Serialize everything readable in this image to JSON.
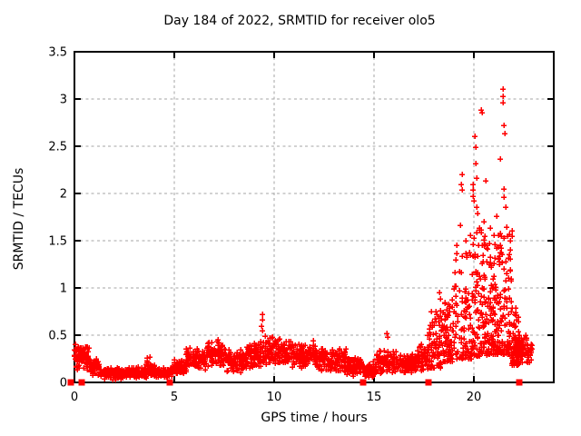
{
  "chart_data": {
    "type": "scatter",
    "title": "Day 184 of 2022, SRMTID for receiver olo5",
    "xlabel": "GPS time / hours",
    "ylabel": "SRMTID / TECUs",
    "xlim": [
      0,
      24
    ],
    "ylim": [
      0,
      3.5
    ],
    "xticks": [
      0,
      5,
      10,
      15,
      20
    ],
    "xtick_labels": [
      "0",
      "5",
      "10",
      "15",
      "20"
    ],
    "yticks": [
      0,
      0.5,
      1,
      1.5,
      2,
      2.5,
      3,
      3.5
    ],
    "ytick_labels": [
      "0",
      "0.5",
      "1",
      "1.5",
      "2",
      "2.5",
      "3",
      "3.5"
    ],
    "grid": "dashed on both axes at major ticks",
    "legend_position": "none",
    "marker": "plus-cross",
    "marker_color": "#ff0000",
    "grid_color": "#a6a6a6",
    "border_color": "#000000",
    "background_color": "#ffffff",
    "segment_format": [
      "x_start",
      "x_end",
      "count",
      "y_min",
      "y_max",
      "profile"
    ],
    "band_segments": [
      [
        0.0,
        0.35,
        45,
        0.08,
        0.46,
        "mid"
      ],
      [
        0.35,
        0.75,
        55,
        0.12,
        0.42,
        "mid"
      ],
      [
        0.75,
        1.25,
        60,
        0.06,
        0.28,
        "mid"
      ],
      [
        1.25,
        2.5,
        150,
        0.03,
        0.16,
        "mid"
      ],
      [
        2.5,
        3.6,
        130,
        0.04,
        0.17,
        "mid"
      ],
      [
        3.6,
        4.0,
        50,
        0.05,
        0.27,
        "mid"
      ],
      [
        4.0,
        4.9,
        95,
        0.04,
        0.16,
        "mid"
      ],
      [
        4.9,
        5.6,
        85,
        0.07,
        0.26,
        "mid"
      ],
      [
        5.6,
        6.6,
        115,
        0.12,
        0.38,
        "mid"
      ],
      [
        6.6,
        7.6,
        115,
        0.14,
        0.45,
        "mid"
      ],
      [
        7.6,
        8.6,
        105,
        0.1,
        0.36,
        "mid"
      ],
      [
        8.6,
        9.5,
        95,
        0.13,
        0.45,
        "mid"
      ],
      [
        9.5,
        10.6,
        115,
        0.16,
        0.5,
        "mid"
      ],
      [
        10.6,
        12.1,
        150,
        0.13,
        0.46,
        "mid"
      ],
      [
        12.1,
        13.6,
        140,
        0.09,
        0.38,
        "mid"
      ],
      [
        13.6,
        14.4,
        85,
        0.06,
        0.28,
        "mid"
      ],
      [
        14.4,
        15.1,
        70,
        0.05,
        0.22,
        "mid"
      ],
      [
        15.1,
        16.1,
        95,
        0.08,
        0.36,
        "mid"
      ],
      [
        16.1,
        17.1,
        95,
        0.08,
        0.31,
        "mid"
      ],
      [
        17.1,
        17.7,
        65,
        0.1,
        0.42,
        "mid"
      ],
      [
        17.7,
        18.35,
        75,
        0.15,
        0.78,
        "low"
      ],
      [
        18.35,
        19.0,
        85,
        0.22,
        0.9,
        "low"
      ],
      [
        19.0,
        19.9,
        95,
        0.25,
        1.45,
        "low"
      ],
      [
        19.9,
        20.65,
        115,
        0.28,
        1.65,
        "low"
      ],
      [
        20.65,
        21.2,
        100,
        0.3,
        1.5,
        "low"
      ],
      [
        21.2,
        21.9,
        115,
        0.3,
        1.65,
        "low"
      ],
      [
        21.9,
        22.25,
        55,
        0.18,
        0.8,
        "low"
      ],
      [
        22.0,
        22.7,
        90,
        0.15,
        0.55,
        "mid"
      ],
      [
        22.65,
        22.95,
        25,
        0.2,
        0.45,
        "mid"
      ]
    ],
    "outlier_points": [
      [
        9.4,
        0.72
      ],
      [
        9.4,
        0.66
      ],
      [
        9.38,
        0.6
      ],
      [
        9.42,
        0.55
      ],
      [
        15.65,
        0.52
      ],
      [
        15.7,
        0.48
      ],
      [
        18.25,
        0.95
      ],
      [
        18.3,
        0.88
      ],
      [
        19.15,
        1.45
      ],
      [
        19.3,
        1.66
      ],
      [
        19.4,
        2.2
      ],
      [
        19.37,
        2.1
      ],
      [
        19.42,
        2.04
      ],
      [
        19.6,
        1.5
      ],
      [
        19.8,
        1.56
      ],
      [
        19.95,
        2.1
      ],
      [
        19.97,
        2.04
      ],
      [
        19.95,
        1.97
      ],
      [
        19.98,
        1.92
      ],
      [
        20.05,
        2.61
      ],
      [
        20.07,
        2.49
      ],
      [
        20.1,
        2.32
      ],
      [
        20.15,
        2.16
      ],
      [
        20.15,
        1.86
      ],
      [
        20.2,
        1.79
      ],
      [
        20.25,
        1.62
      ],
      [
        20.35,
        2.88
      ],
      [
        20.42,
        2.86
      ],
      [
        20.5,
        1.7
      ],
      [
        20.6,
        2.13
      ],
      [
        20.8,
        1.63
      ],
      [
        21.0,
        1.56
      ],
      [
        21.15,
        1.76
      ],
      [
        21.3,
        2.37
      ],
      [
        21.45,
        3.11
      ],
      [
        21.45,
        3.03
      ],
      [
        21.47,
        2.96
      ],
      [
        21.5,
        2.72
      ],
      [
        21.55,
        2.63
      ],
      [
        21.5,
        2.05
      ],
      [
        21.52,
        1.96
      ],
      [
        21.6,
        1.86
      ],
      [
        21.7,
        1.55
      ]
    ],
    "zero_flag_squares_x": [
      -0.2,
      0.37,
      4.75,
      14.45,
      17.72,
      22.28
    ],
    "y_max_observed": 3.11,
    "series_name": "SRMTID"
  }
}
